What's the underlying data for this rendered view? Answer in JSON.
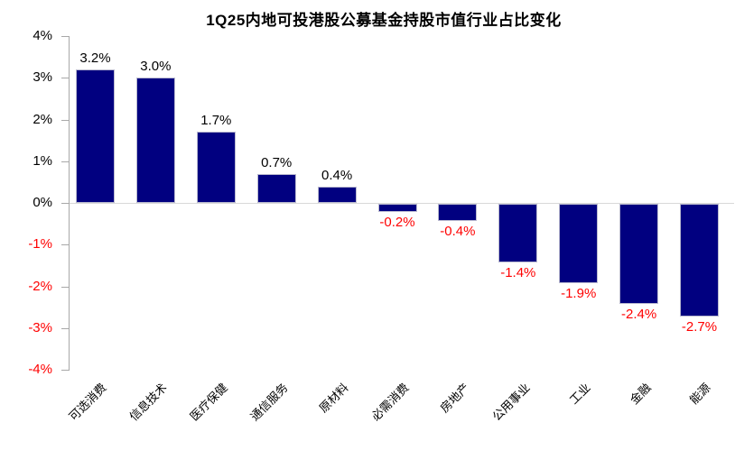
{
  "chart_data": {
    "type": "bar",
    "title": "1Q25内地可投港股公募基金持股市值行业占比变化",
    "categories": [
      "可选消费",
      "信息技术",
      "医疗保健",
      "通信服务",
      "原材料",
      "必需消费",
      "房地产",
      "公用事业",
      "工业",
      "金融",
      "能源"
    ],
    "values": [
      3.2,
      3.0,
      1.7,
      0.7,
      0.4,
      -0.2,
      -0.4,
      -1.4,
      -1.9,
      -2.4,
      -2.7
    ],
    "value_labels": [
      "3.2%",
      "3.0%",
      "1.7%",
      "0.7%",
      "0.4%",
      "-0.2%",
      "-0.4%",
      "-1.4%",
      "-1.9%",
      "-2.4%",
      "-2.7%"
    ],
    "y_tick_labels": [
      "4%",
      "3%",
      "2%",
      "1%",
      "0%",
      "-1%",
      "-2%",
      "-3%",
      "-4%"
    ],
    "y_tick_values": [
      4,
      3,
      2,
      1,
      0,
      -1,
      -2,
      -3,
      -4
    ],
    "ylim": [
      -4,
      4
    ],
    "xlabel": "",
    "ylabel": "",
    "legend": "none",
    "grid": "zero-line-only",
    "colors": {
      "bar_fill": "#010080",
      "bar_border": "#b9b9cf",
      "positive_text": "#000000",
      "negative_text": "#ff0000",
      "axis": "#a8a8a8",
      "zero_line": "#d9d9d9",
      "title": "#000000",
      "background": "#ffffff"
    }
  }
}
